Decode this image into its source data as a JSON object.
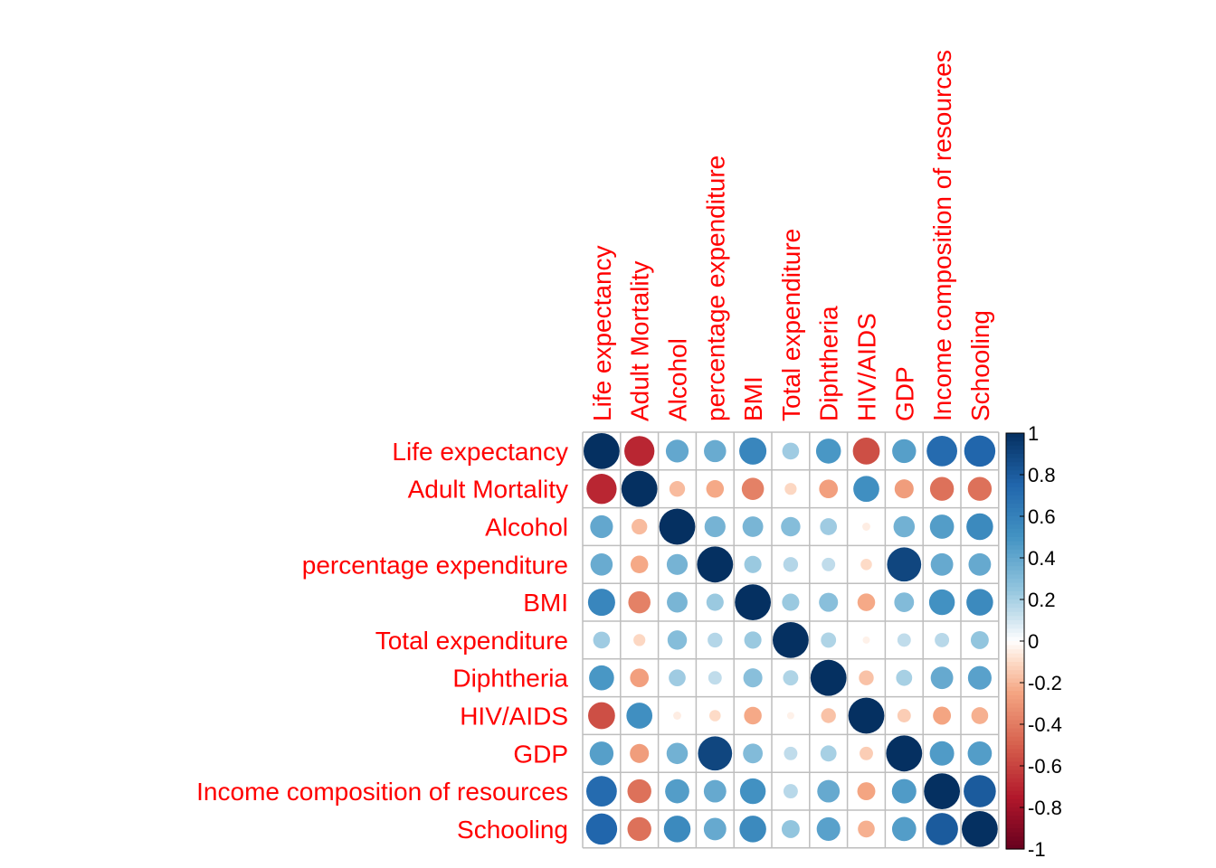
{
  "chart_data": {
    "type": "heatmap",
    "method": "circle",
    "variables": [
      "Life expectancy",
      "Adult Mortality",
      "Alcohol",
      "percentage expenditure",
      "BMI",
      "Total expenditure",
      "Diphtheria",
      "HIV/AIDS",
      "GDP",
      "Income composition of resources",
      "Schooling"
    ],
    "matrix": [
      [
        1.0,
        -0.7,
        0.4,
        0.38,
        0.57,
        0.22,
        0.48,
        -0.56,
        0.44,
        0.72,
        0.75
      ],
      [
        -0.7,
        1.0,
        -0.19,
        -0.24,
        -0.38,
        -0.11,
        -0.27,
        0.52,
        -0.28,
        -0.44,
        -0.44
      ],
      [
        0.4,
        -0.19,
        1.0,
        0.34,
        0.33,
        0.29,
        0.22,
        -0.05,
        0.35,
        0.45,
        0.55
      ],
      [
        0.38,
        -0.24,
        0.34,
        1.0,
        0.23,
        0.17,
        0.14,
        -0.1,
        0.9,
        0.39,
        0.39
      ],
      [
        0.57,
        -0.38,
        0.33,
        0.23,
        1.0,
        0.23,
        0.28,
        -0.24,
        0.3,
        0.51,
        0.55
      ],
      [
        0.22,
        -0.11,
        0.29,
        0.17,
        0.23,
        1.0,
        0.18,
        -0.04,
        0.14,
        0.16,
        0.25
      ],
      [
        0.48,
        -0.27,
        0.22,
        0.14,
        0.28,
        0.18,
        1.0,
        -0.17,
        0.2,
        0.39,
        0.43
      ],
      [
        -0.56,
        0.52,
        -0.05,
        -0.1,
        -0.24,
        -0.04,
        -0.17,
        1.0,
        -0.14,
        -0.25,
        -0.22
      ],
      [
        0.44,
        -0.28,
        0.35,
        0.9,
        0.3,
        0.14,
        0.2,
        -0.14,
        1.0,
        0.46,
        0.45
      ],
      [
        0.72,
        -0.44,
        0.45,
        0.39,
        0.51,
        0.16,
        0.39,
        -0.25,
        0.46,
        1.0,
        0.8
      ],
      [
        0.75,
        -0.44,
        0.55,
        0.39,
        0.55,
        0.25,
        0.43,
        -0.22,
        0.45,
        0.8,
        1.0
      ]
    ],
    "colorbar": {
      "range": [
        -1,
        1
      ],
      "ticks": [
        "1",
        "0.8",
        "0.6",
        "0.4",
        "0.2",
        "0",
        "-0.2",
        "-0.4",
        "-0.6",
        "-0.8",
        "-1"
      ],
      "colors": {
        "neg_strong": "#67001f",
        "neg_mid": "#d6604d",
        "zero": "#ffffff",
        "pos_mid": "#4393c3",
        "pos_strong": "#053061"
      }
    },
    "label_color": "#ff0000",
    "grid_color": "#bebebe",
    "grid": true,
    "legend_position": "right"
  }
}
